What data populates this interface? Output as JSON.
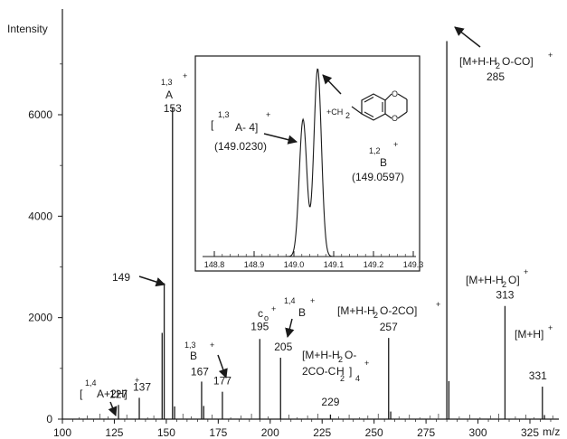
{
  "chart_data": {
    "type": "bar",
    "ylabel": "Intensity",
    "xlabel": "m/z",
    "xlim": [
      100,
      340
    ],
    "ylim": [
      0,
      7500
    ],
    "x_ticks": [
      "100",
      "125",
      "150",
      "175",
      "200",
      "225",
      "250",
      "275",
      "300",
      "325"
    ],
    "y_ticks": [
      "0",
      "2000",
      "4000",
      "6000"
    ],
    "peaks": [
      {
        "x": 127,
        "y": 280,
        "label": "127"
      },
      {
        "x": 137,
        "y": 420,
        "label": "137"
      },
      {
        "x": 149,
        "y": 2680,
        "label": "149"
      },
      {
        "x": 148,
        "y": 1700,
        "label": ""
      },
      {
        "x": 153,
        "y": 6150,
        "label": "153"
      },
      {
        "x": 154,
        "y": 250,
        "label": ""
      },
      {
        "x": 167,
        "y": 740,
        "label": "167"
      },
      {
        "x": 168,
        "y": 260,
        "label": ""
      },
      {
        "x": 177,
        "y": 540,
        "label": "177"
      },
      {
        "x": 195,
        "y": 1580,
        "label": "195"
      },
      {
        "x": 205,
        "y": 1210,
        "label": "205"
      },
      {
        "x": 229,
        "y": 90,
        "label": "229"
      },
      {
        "x": 257,
        "y": 1600,
        "label": "257"
      },
      {
        "x": 258,
        "y": 150,
        "label": ""
      },
      {
        "x": 285,
        "y": 7450,
        "label": "285"
      },
      {
        "x": 286,
        "y": 750,
        "label": ""
      },
      {
        "x": 313,
        "y": 2230,
        "label": "313"
      },
      {
        "x": 331,
        "y": 640,
        "label": "331"
      },
      {
        "x": 332,
        "y": 80,
        "label": ""
      }
    ],
    "noise_x": [
      108,
      112,
      118,
      122,
      131,
      141,
      144,
      158,
      162,
      172,
      181,
      186,
      191,
      199,
      209,
      213,
      218,
      223,
      233,
      238,
      243,
      247,
      252,
      262,
      267,
      272,
      277,
      281,
      291,
      296,
      301,
      306,
      310,
      318,
      323,
      327,
      336
    ],
    "annotations": {
      "a13_sup": "1,3",
      "a13_plus": "+",
      "a13_main": "A",
      "b13_sup": "1,3",
      "b13_main": "B",
      "b13_plus": "+",
      "a14_open": "[",
      "a14_sup": "1,4",
      "a14_main": "A+2H]",
      "a14_plus": "+",
      "c0_main": "c",
      "c0_sub": "o",
      "c0_plus": "+",
      "b14_sup": "1,4",
      "b14_main": "B",
      "b14_plus": "+",
      "m229_line1": "[M+H-H",
      "m229_sub1": "2",
      "m229_line1b": "O-",
      "m229_line2": "2CO-C",
      "m229_line2b": "H",
      "m229_sub2": "2",
      "m229_sub3": "4",
      "m229_close": "]",
      "m229_plus": "+",
      "m257_a": "[M+H-H",
      "m257_sub": "2",
      "m257_b": "O-2CO]",
      "m257_plus": "+",
      "m285_a": "[M+H-H",
      "m285_sub": "2",
      "m285_b": "O-CO]",
      "m285_plus": "+",
      "m313_a": "[M+H-H",
      "m313_sub": "2",
      "m313_b": "O]",
      "m313_plus": "+",
      "m331_a": "[M+H]",
      "m331_plus": "+"
    }
  },
  "inset": {
    "x_ticks": [
      "148.8",
      "148.9",
      "149.0",
      "149.1",
      "149.2",
      "149.3"
    ],
    "xlim": [
      148.75,
      149.35
    ],
    "peaks": [
      {
        "x": 149.023,
        "height": 0.73
      },
      {
        "x": 149.0597,
        "height": 1.0
      }
    ],
    "label_a_open": "[",
    "label_a_sup": "1,3",
    "label_a_main": "A- 4]",
    "label_a_plus": "+",
    "label_a_value": "(149.0230)",
    "label_b_sup": "1,2",
    "label_b_plus": "+",
    "label_b_main": "B",
    "label_b_value": "(149.0597)",
    "structure_label": "+CH",
    "structure_sub": "2"
  }
}
